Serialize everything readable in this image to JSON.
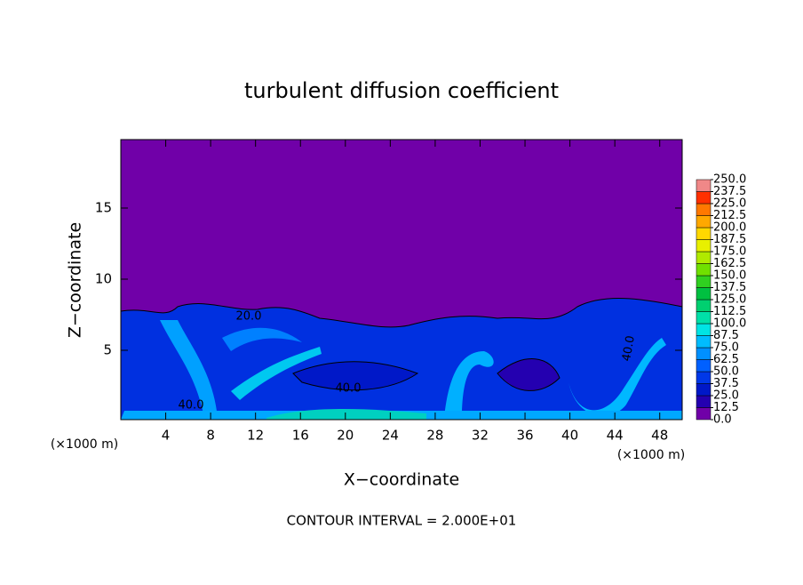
{
  "chart_data": {
    "type": "contour",
    "title": "turbulent diffusion coefficient",
    "x_label": "X−coordinate",
    "y_label": "Z−coordinate",
    "x_unit": "(×1000 m)",
    "footer": "CONTOUR INTERVAL = 2.000E+01",
    "xlim": [
      0,
      50
    ],
    "ylim": [
      0,
      20
    ],
    "xticks": [
      4,
      8,
      12,
      16,
      20,
      24,
      28,
      32,
      36,
      40,
      44,
      48
    ],
    "yticks": [
      5,
      10,
      15
    ],
    "contour_labels": [
      "20.0",
      "40.0",
      "40.0",
      "40.0"
    ],
    "colorbar": {
      "levels": [
        {
          "value": 0,
          "label": "0.0"
        },
        {
          "value": 12.5,
          "label": "12.5"
        },
        {
          "value": 25,
          "label": "25.0"
        },
        {
          "value": 37.5,
          "label": "37.5"
        },
        {
          "value": 50,
          "label": "50.0"
        },
        {
          "value": 62.5,
          "label": "62.5"
        },
        {
          "value": 75,
          "label": "75.0"
        },
        {
          "value": 87.5,
          "label": "87.5"
        },
        {
          "value": 100,
          "label": "100.0"
        },
        {
          "value": 112.5,
          "label": "112.5"
        },
        {
          "value": 125,
          "label": "125.0"
        },
        {
          "value": 137.5,
          "label": "137.5"
        },
        {
          "value": 150,
          "label": "150.0"
        },
        {
          "value": 162.5,
          "label": "162.5"
        },
        {
          "value": 175,
          "label": "175.0"
        },
        {
          "value": 187.5,
          "label": "187.5"
        },
        {
          "value": 200,
          "label": "200.0"
        },
        {
          "value": 212.5,
          "label": "212.5"
        },
        {
          "value": 225,
          "label": "225.0"
        },
        {
          "value": 237.5,
          "label": "237.5"
        },
        {
          "value": 250,
          "label": "250.0"
        }
      ],
      "colors": [
        "#7000a8",
        "#2400b0",
        "#0018c8",
        "#0038e8",
        "#0060ff",
        "#0090ff",
        "#00bcff",
        "#00e4e4",
        "#00e0a8",
        "#00d070",
        "#00c040",
        "#30d020",
        "#70e000",
        "#b0ea00",
        "#e8f000",
        "#ffd800",
        "#ffa800",
        "#ff7800",
        "#ff3000",
        "#f08888"
      ]
    }
  }
}
